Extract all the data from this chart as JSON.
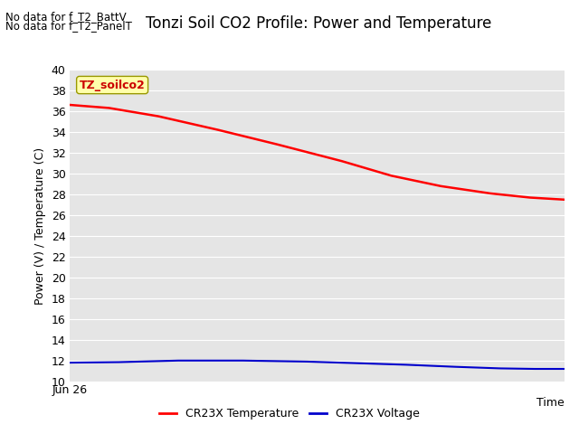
{
  "title": "Tonzi Soil CO2 Profile: Power and Temperature",
  "ylabel": "Power (V) / Temperature (C)",
  "xlabel": "Time",
  "no_data_lines": [
    "No data for f_T2_BattV",
    "No data for f_T2_PanelT"
  ],
  "annotation_label": "TZ_soilco2",
  "ylim": [
    10,
    40
  ],
  "yticks": [
    10,
    12,
    14,
    16,
    18,
    20,
    22,
    24,
    26,
    28,
    30,
    32,
    34,
    36,
    38,
    40
  ],
  "xmin_label": "Jun 26",
  "background_color": "#e5e5e5",
  "red_line": {
    "x": [
      0.0,
      0.08,
      0.18,
      0.3,
      0.42,
      0.55,
      0.65,
      0.75,
      0.85,
      0.93,
      1.0
    ],
    "y": [
      36.6,
      36.3,
      35.5,
      34.2,
      32.8,
      31.2,
      29.8,
      28.8,
      28.1,
      27.7,
      27.5
    ],
    "color": "#ff0000",
    "linewidth": 1.8,
    "label": "CR23X Temperature"
  },
  "blue_line": {
    "x": [
      0.0,
      0.1,
      0.22,
      0.35,
      0.48,
      0.58,
      0.68,
      0.78,
      0.87,
      0.94,
      1.0
    ],
    "y": [
      11.85,
      11.9,
      12.05,
      12.05,
      11.95,
      11.8,
      11.65,
      11.45,
      11.3,
      11.25,
      11.25
    ],
    "color": "#0000cc",
    "linewidth": 1.5,
    "label": "CR23X Voltage"
  },
  "title_fontsize": 12,
  "axis_label_fontsize": 9,
  "tick_fontsize": 9,
  "no_data_fontsize": 8.5,
  "legend_fontsize": 9
}
